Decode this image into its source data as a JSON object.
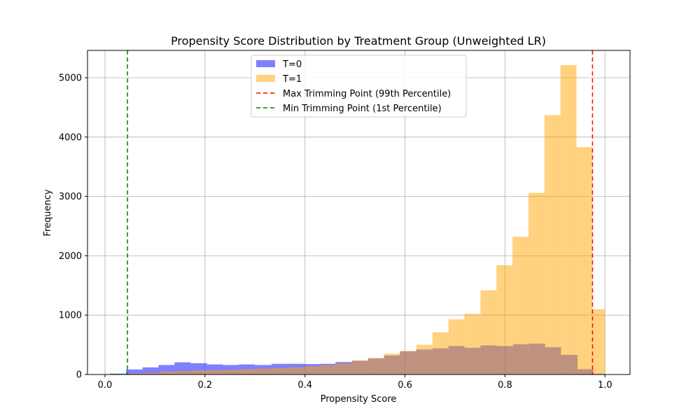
{
  "chart_data": {
    "type": "histogram",
    "title": "Propensity Score Distribution by Treatment Group (Unweighted LR)",
    "xlabel": "Propensity Score",
    "ylabel": "Frequency",
    "xlim": [
      -0.035,
      1.05
    ],
    "ylim": [
      0,
      5460
    ],
    "x_ticks": [
      0.0,
      0.2,
      0.4,
      0.6,
      0.8,
      1.0
    ],
    "x_tick_labels": [
      "0.0",
      "0.2",
      "0.4",
      "0.6",
      "0.8",
      "1.0"
    ],
    "y_ticks": [
      0,
      1000,
      2000,
      3000,
      4000,
      5000
    ],
    "y_tick_labels": [
      "0",
      "1000",
      "2000",
      "3000",
      "4000",
      "5000"
    ],
    "grid": true,
    "legend_position": "upper center",
    "series": [
      {
        "name": "T=0",
        "color": "#7f7ffe",
        "bins": [
          [
            0.01,
            0.042,
            15
          ],
          [
            0.042,
            0.075,
            85
          ],
          [
            0.075,
            0.107,
            120
          ],
          [
            0.107,
            0.139,
            160
          ],
          [
            0.139,
            0.171,
            205
          ],
          [
            0.171,
            0.204,
            190
          ],
          [
            0.204,
            0.236,
            170
          ],
          [
            0.236,
            0.268,
            160
          ],
          [
            0.268,
            0.3,
            170
          ],
          [
            0.3,
            0.333,
            160
          ],
          [
            0.333,
            0.365,
            180
          ],
          [
            0.365,
            0.397,
            180
          ],
          [
            0.397,
            0.429,
            175
          ],
          [
            0.429,
            0.461,
            180
          ],
          [
            0.461,
            0.494,
            210
          ],
          [
            0.494,
            0.526,
            230
          ],
          [
            0.526,
            0.558,
            270
          ],
          [
            0.558,
            0.59,
            320
          ],
          [
            0.59,
            0.622,
            390
          ],
          [
            0.622,
            0.655,
            420
          ],
          [
            0.655,
            0.687,
            440
          ],
          [
            0.687,
            0.719,
            480
          ],
          [
            0.719,
            0.751,
            450
          ],
          [
            0.751,
            0.784,
            490
          ],
          [
            0.784,
            0.816,
            480
          ],
          [
            0.816,
            0.848,
            510
          ],
          [
            0.848,
            0.88,
            520
          ],
          [
            0.88,
            0.912,
            460
          ],
          [
            0.912,
            0.945,
            330
          ],
          [
            0.945,
            0.977,
            90
          ],
          [
            0.977,
            1.0,
            10
          ]
        ]
      },
      {
        "name": "T=1",
        "color": "#ffc965",
        "bins": [
          [
            0.047,
            0.079,
            20
          ],
          [
            0.079,
            0.111,
            30
          ],
          [
            0.111,
            0.143,
            50
          ],
          [
            0.143,
            0.175,
            60
          ],
          [
            0.175,
            0.207,
            70
          ],
          [
            0.207,
            0.239,
            75
          ],
          [
            0.239,
            0.271,
            80
          ],
          [
            0.271,
            0.303,
            90
          ],
          [
            0.303,
            0.335,
            100
          ],
          [
            0.335,
            0.367,
            110
          ],
          [
            0.367,
            0.399,
            120
          ],
          [
            0.399,
            0.431,
            140
          ],
          [
            0.431,
            0.463,
            160
          ],
          [
            0.463,
            0.495,
            190
          ],
          [
            0.495,
            0.527,
            240
          ],
          [
            0.527,
            0.559,
            280
          ],
          [
            0.559,
            0.591,
            350
          ],
          [
            0.591,
            0.623,
            400
          ],
          [
            0.623,
            0.655,
            500
          ],
          [
            0.655,
            0.687,
            710
          ],
          [
            0.687,
            0.719,
            930
          ],
          [
            0.719,
            0.751,
            1020
          ],
          [
            0.751,
            0.783,
            1420
          ],
          [
            0.783,
            0.815,
            1840
          ],
          [
            0.815,
            0.847,
            2320
          ],
          [
            0.847,
            0.879,
            3060
          ],
          [
            0.879,
            0.911,
            4370
          ],
          [
            0.911,
            0.943,
            5210
          ],
          [
            0.943,
            0.975,
            3830
          ],
          [
            0.975,
            1.0,
            1100
          ]
        ]
      }
    ],
    "vlines": [
      {
        "name": "Max Trimming Point (99th Percentile)",
        "x": 0.975,
        "color": "#ff0000"
      },
      {
        "name": "Min Trimming Point (1st Percentile)",
        "x": 0.045,
        "color": "#008000"
      }
    ]
  }
}
